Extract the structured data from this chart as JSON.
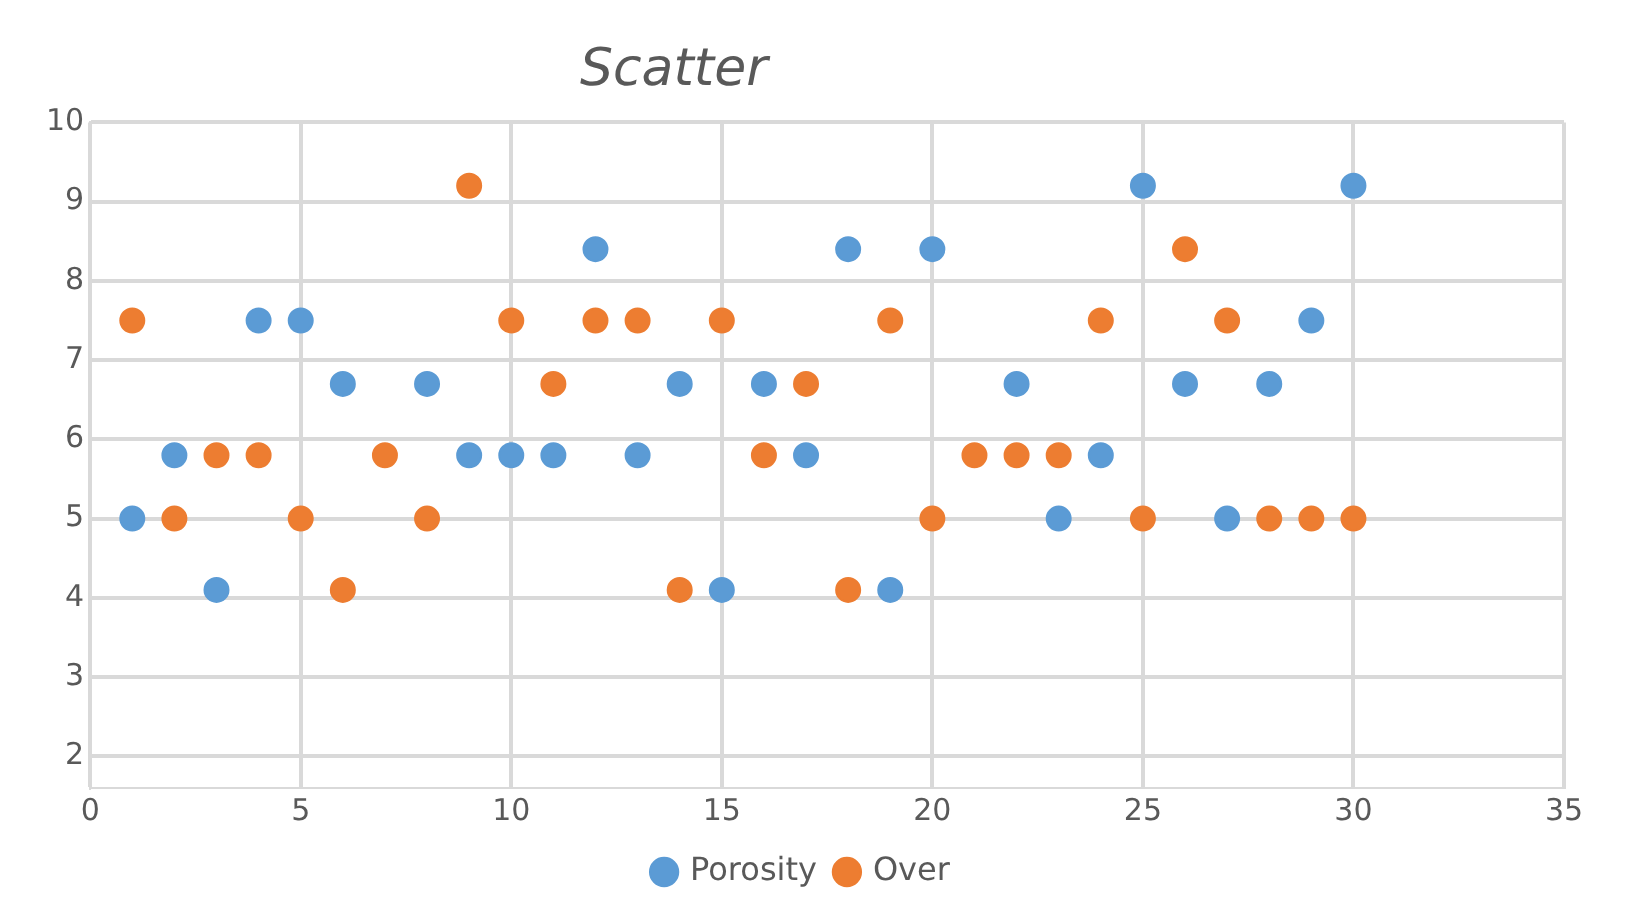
{
  "chart_data": {
    "type": "scatter",
    "title": "Scatter",
    "x": [
      1,
      2,
      3,
      4,
      5,
      6,
      7,
      8,
      9,
      10,
      11,
      12,
      13,
      14,
      15,
      16,
      17,
      18,
      19,
      20,
      21,
      22,
      23,
      24,
      25,
      26,
      27,
      28,
      29,
      30
    ],
    "series": [
      {
        "name": "Porosity",
        "color": "#5b9bd5",
        "values": [
          5.0,
          5.8,
          4.1,
          7.5,
          7.5,
          6.7,
          null,
          6.7,
          5.8,
          5.8,
          5.8,
          8.4,
          5.8,
          6.7,
          4.1,
          6.7,
          5.8,
          8.4,
          4.1,
          8.4,
          null,
          6.7,
          5.0,
          5.8,
          9.2,
          6.7,
          5.0,
          6.7,
          7.5,
          9.2
        ]
      },
      {
        "name": "Over",
        "color": "#ed7d31",
        "values": [
          7.5,
          5.0,
          5.8,
          5.8,
          5.0,
          4.1,
          5.8,
          5.0,
          9.2,
          7.5,
          6.7,
          7.5,
          7.5,
          4.1,
          7.5,
          5.8,
          6.7,
          4.1,
          7.5,
          5.0,
          5.8,
          5.8,
          5.8,
          7.5,
          5.0,
          8.4,
          7.5,
          5.0,
          5.0,
          5.0
        ]
      }
    ],
    "xlim": [
      0,
      35
    ],
    "xticks": [
      0,
      5,
      10,
      15,
      20,
      25,
      30,
      35
    ],
    "ylim": [
      1.6,
      10
    ],
    "yticks": [
      2,
      3,
      4,
      5,
      6,
      7,
      8,
      9,
      10
    ],
    "grid": true,
    "legend": "bottom",
    "marker": "circle"
  }
}
